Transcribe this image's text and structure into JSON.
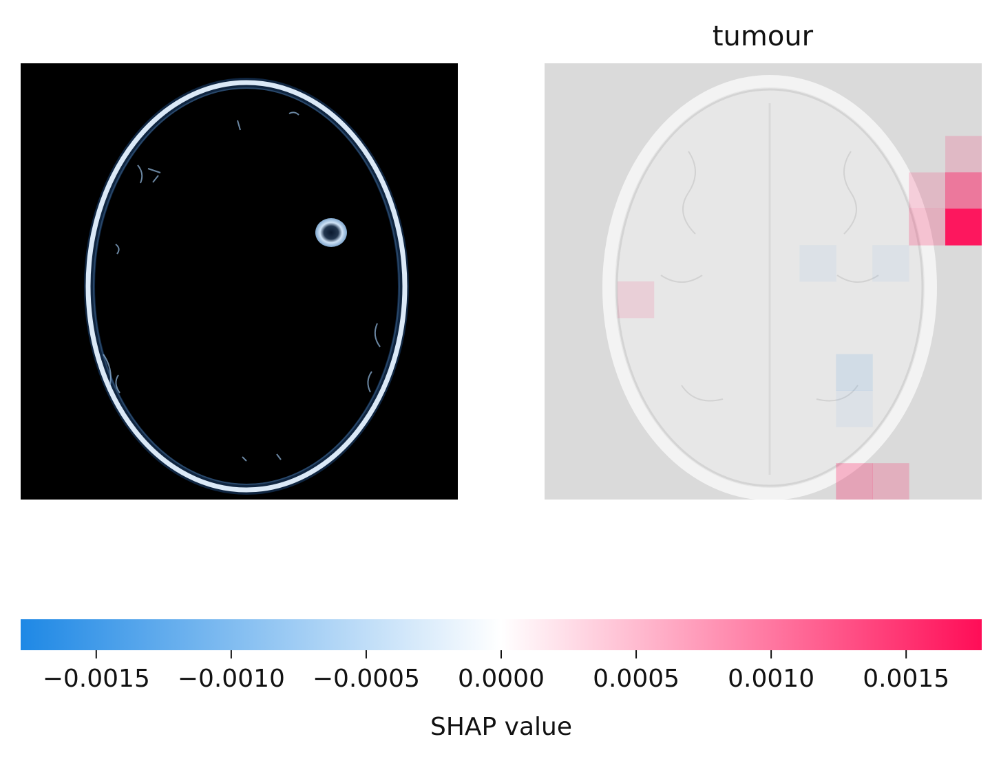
{
  "chart_data": {
    "type": "heatmap",
    "subtitle": "",
    "panels": [
      {
        "title": "",
        "kind": "input-image",
        "colormap": "black-to-light-blue",
        "description_shown": "brain MRI slice"
      },
      {
        "title": "tumour",
        "kind": "shap-overlay",
        "grid": [
          12,
          12
        ],
        "nonzero_cells": [
          {
            "row": 4,
            "col": 11,
            "value": 0.0018
          },
          {
            "row": 3,
            "col": 11,
            "value": 0.0009
          },
          {
            "row": 4,
            "col": 10,
            "value": 0.0004
          },
          {
            "row": 3,
            "col": 10,
            "value": 0.0003
          },
          {
            "row": 2,
            "col": 11,
            "value": 0.0003
          },
          {
            "row": 8,
            "col": 8,
            "value": -0.0002
          },
          {
            "row": 9,
            "col": 8,
            "value": -0.0001
          },
          {
            "row": 11,
            "col": 8,
            "value": 0.0005
          },
          {
            "row": 11,
            "col": 9,
            "value": 0.0004
          },
          {
            "row": 6,
            "col": 2,
            "value": 0.0002
          },
          {
            "row": 5,
            "col": 7,
            "value": -0.0001
          },
          {
            "row": 5,
            "col": 9,
            "value": -0.0001
          }
        ]
      }
    ],
    "colorbar": {
      "label": "SHAP value",
      "range": [
        -0.00178,
        0.00178
      ],
      "ticks": [
        -0.0015,
        -0.001,
        -0.0005,
        0.0,
        0.0005,
        0.001,
        0.0015
      ],
      "tick_labels": [
        "−0.0015",
        "−0.0010",
        "−0.0005",
        "0.0000",
        "0.0005",
        "0.0010",
        "0.0015"
      ],
      "negative_color": "#1E88E5",
      "zero_color": "#FFFFFF",
      "positive_color": "#FF0D57"
    }
  }
}
